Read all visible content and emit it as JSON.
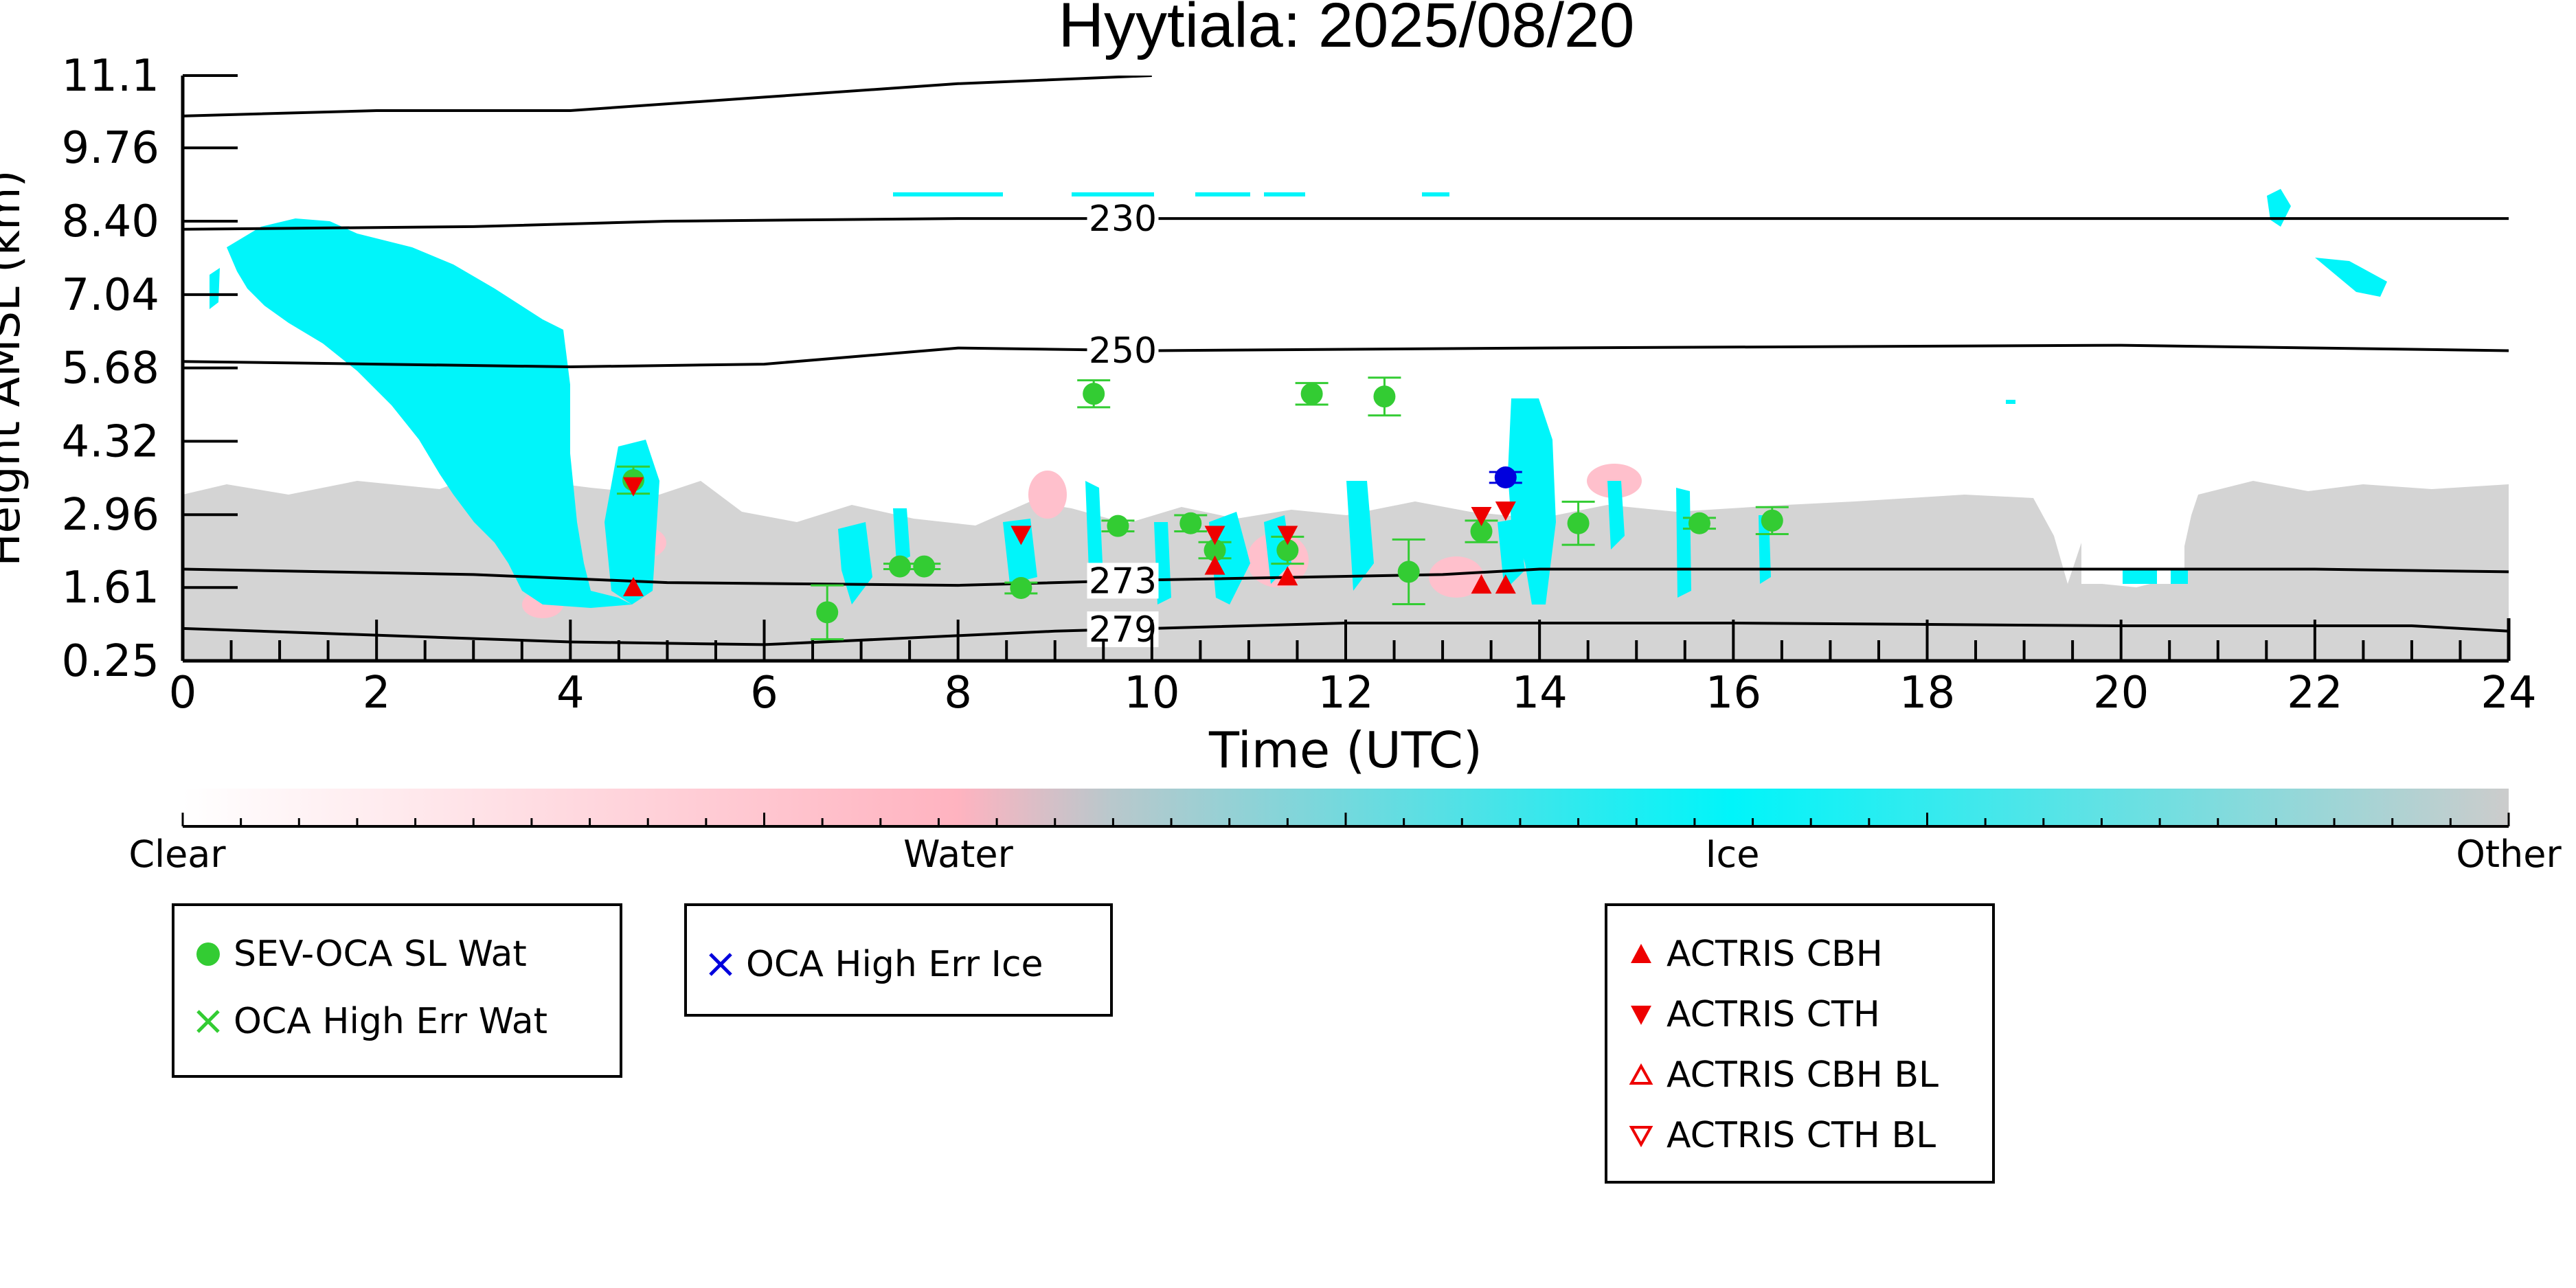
{
  "chart_data": {
    "type": "scatter",
    "title": "Hyytiala: 2025/08/20",
    "xlabel": "Time (UTC)",
    "ylabel": "Height AMSL (km)",
    "xlim": [
      0,
      24
    ],
    "ylim": [
      0.25,
      11.1
    ],
    "x_ticks": [
      "0",
      "2",
      "4",
      "6",
      "8",
      "10",
      "12",
      "14",
      "16",
      "18",
      "20",
      "22",
      "24"
    ],
    "y_ticks": [
      "0.25",
      "1.61",
      "2.96",
      "4.32",
      "5.68",
      "7.04",
      "8.40",
      "9.76",
      "11.1"
    ],
    "background": "cloud phase classification image (Clear / Water / Ice / Other)",
    "temperature_contours": [
      {
        "label": "230",
        "label_x": 9.7,
        "points": [
          [
            0,
            8.25
          ],
          [
            3,
            8.3
          ],
          [
            5,
            8.4
          ],
          [
            8,
            8.45
          ],
          [
            10,
            8.45
          ],
          [
            14,
            8.45
          ],
          [
            20,
            8.45
          ],
          [
            24,
            8.45
          ]
        ]
      },
      {
        "label": "250",
        "label_x": 9.7,
        "points": [
          [
            0,
            5.8
          ],
          [
            2,
            5.75
          ],
          [
            4,
            5.7
          ],
          [
            6,
            5.75
          ],
          [
            8,
            6.05
          ],
          [
            10,
            6.0
          ],
          [
            14,
            6.05
          ],
          [
            20,
            6.1
          ],
          [
            24,
            6.0
          ]
        ]
      },
      {
        "label": "273",
        "label_x": 9.7,
        "points": [
          [
            0,
            1.95
          ],
          [
            3,
            1.85
          ],
          [
            5,
            1.7
          ],
          [
            8,
            1.65
          ],
          [
            10,
            1.75
          ],
          [
            13,
            1.85
          ],
          [
            14,
            1.95
          ],
          [
            18,
            1.95
          ],
          [
            22,
            1.95
          ],
          [
            24,
            1.9
          ]
        ]
      },
      {
        "label": "279",
        "label_x": 9.7,
        "points": [
          [
            0,
            0.85
          ],
          [
            4,
            0.6
          ],
          [
            6,
            0.55
          ],
          [
            9,
            0.8
          ],
          [
            12,
            0.95
          ],
          [
            16,
            0.95
          ],
          [
            20,
            0.9
          ],
          [
            23,
            0.9
          ],
          [
            24,
            0.8
          ]
        ]
      },
      {
        "label": "",
        "label_x": null,
        "points": [
          [
            0,
            10.35
          ],
          [
            2,
            10.45
          ],
          [
            4,
            10.45
          ],
          [
            6,
            10.7
          ],
          [
            8,
            10.95
          ],
          [
            10,
            11.1
          ]
        ]
      }
    ],
    "series": [
      {
        "name": "SEV-OCA SL Wat",
        "color": "#33cc33",
        "marker": "circle",
        "points": [
          {
            "x": 4.65,
            "y": 3.6,
            "err": 0.25
          },
          {
            "x": 6.65,
            "y": 1.15,
            "err": 0.5
          },
          {
            "x": 7.4,
            "y": 2.0,
            "err": 0.05
          },
          {
            "x": 7.65,
            "y": 2.0,
            "err": 0.05
          },
          {
            "x": 8.65,
            "y": 1.6,
            "err": 0.1
          },
          {
            "x": 9.4,
            "y": 5.2,
            "err": 0.25
          },
          {
            "x": 9.65,
            "y": 2.75,
            "err": 0.1
          },
          {
            "x": 10.4,
            "y": 2.8,
            "err": 0.15
          },
          {
            "x": 10.65,
            "y": 2.3,
            "err": 0.15
          },
          {
            "x": 11.4,
            "y": 2.3,
            "err": 0.25
          },
          {
            "x": 11.65,
            "y": 5.2,
            "err": 0.2
          },
          {
            "x": 12.4,
            "y": 5.15,
            "err": 0.35
          },
          {
            "x": 12.65,
            "y": 1.9,
            "err": 0.6
          },
          {
            "x": 13.4,
            "y": 2.65,
            "err": 0.2
          },
          {
            "x": 14.4,
            "y": 2.8,
            "err": 0.4
          },
          {
            "x": 15.65,
            "y": 2.8,
            "err": 0.1
          },
          {
            "x": 16.4,
            "y": 2.85,
            "err": 0.25
          }
        ]
      },
      {
        "name": "OCA High Err Wat",
        "color": "#33cc33",
        "marker": "x",
        "points": []
      },
      {
        "name": "OCA High Err Ice",
        "color": "#0000dd",
        "marker": "x",
        "points": [
          {
            "x": 13.65,
            "y": 3.65,
            "err": 0.1
          }
        ]
      },
      {
        "name": "ACTRIS CBH",
        "color": "#ee0000",
        "marker": "triangle-up",
        "points": [
          {
            "x": 4.65,
            "y": 1.6
          },
          {
            "x": 10.65,
            "y": 2.0
          },
          {
            "x": 11.4,
            "y": 1.8
          },
          {
            "x": 13.4,
            "y": 1.65
          },
          {
            "x": 13.65,
            "y": 1.65
          }
        ]
      },
      {
        "name": "ACTRIS CTH",
        "color": "#ee0000",
        "marker": "triangle-down",
        "points": [
          {
            "x": 4.65,
            "y": 3.5
          },
          {
            "x": 8.65,
            "y": 2.6
          },
          {
            "x": 10.65,
            "y": 2.6
          },
          {
            "x": 11.4,
            "y": 2.6
          },
          {
            "x": 13.4,
            "y": 2.95
          },
          {
            "x": 13.65,
            "y": 3.05
          }
        ]
      },
      {
        "name": "ACTRIS CBH BL",
        "color": "#ee0000",
        "marker": "triangle-up-open",
        "points": []
      },
      {
        "name": "ACTRIS CTH BL",
        "color": "#ee0000",
        "marker": "triangle-down-open",
        "points": []
      }
    ],
    "colorbar": {
      "labels": [
        "Clear",
        "Water",
        "Ice",
        "Other"
      ],
      "colors": {
        "clear": "#ffffff",
        "water": "#ffb3c0",
        "ice": "#00f5fa",
        "other": "#cccccc"
      }
    },
    "legends": [
      {
        "items": [
          "SEV-OCA SL Wat",
          "OCA High Err Wat"
        ]
      },
      {
        "items": [
          "OCA High Err Ice"
        ]
      },
      {
        "items": [
          "ACTRIS CBH",
          "ACTRIS CTH",
          "ACTRIS CBH BL",
          "ACTRIS CTH BL"
        ]
      }
    ]
  }
}
